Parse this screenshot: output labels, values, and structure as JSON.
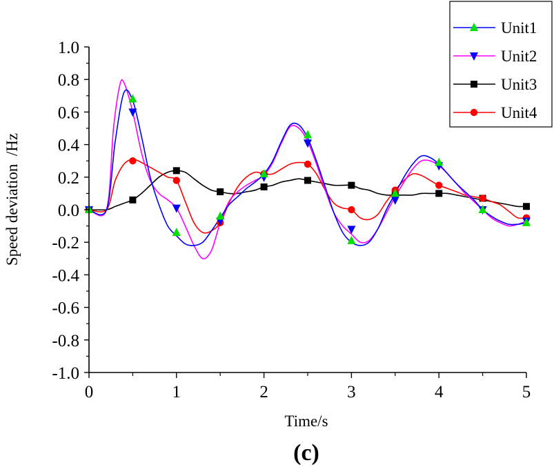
{
  "chart_data": {
    "type": "line",
    "title": "",
    "caption": "(c)",
    "xlabel": "Time/s",
    "ylabel": "Speed deviation  /Hz",
    "xlim": [
      0,
      5
    ],
    "ylim": [
      -1.0,
      1.0
    ],
    "xticks": [
      0,
      1,
      2,
      3,
      4,
      5
    ],
    "xtick_labels": [
      "0",
      "1",
      "2",
      "3",
      "4",
      "5"
    ],
    "yticks": [
      -1.0,
      -0.8,
      -0.6,
      -0.4,
      -0.2,
      0.0,
      0.2,
      0.4,
      0.6,
      0.8,
      1.0
    ],
    "ytick_labels": [
      "-1.0",
      "-0.8",
      "-0.6",
      "-0.4",
      "-0.2",
      "0.0",
      "0.2",
      "0.4",
      "0.6",
      "0.8",
      "1.0"
    ],
    "grid": false,
    "legend_position": "top-right",
    "series": [
      {
        "name": "Unit1",
        "color": "#0000ff",
        "marker": "triangle-up",
        "marker_color": "#00e000",
        "curve": [
          [
            0,
            0
          ],
          [
            0.2,
            0
          ],
          [
            0.3,
            0.42
          ],
          [
            0.4,
            0.72
          ],
          [
            0.5,
            0.67
          ],
          [
            0.6,
            0.45
          ],
          [
            0.7,
            0.2
          ],
          [
            0.8,
            0.03
          ],
          [
            0.9,
            -0.1
          ],
          [
            1.0,
            -0.16
          ],
          [
            1.1,
            -0.21
          ],
          [
            1.2,
            -0.22
          ],
          [
            1.3,
            -0.2
          ],
          [
            1.4,
            -0.13
          ],
          [
            1.5,
            -0.05
          ],
          [
            1.6,
            0.03
          ],
          [
            1.7,
            0.08
          ],
          [
            1.8,
            0.13
          ],
          [
            1.9,
            0.17
          ],
          [
            2.0,
            0.22
          ],
          [
            2.1,
            0.3
          ],
          [
            2.2,
            0.42
          ],
          [
            2.3,
            0.52
          ],
          [
            2.4,
            0.52
          ],
          [
            2.5,
            0.44
          ],
          [
            2.6,
            0.3
          ],
          [
            2.7,
            0.14
          ],
          [
            2.8,
            -0.02
          ],
          [
            2.9,
            -0.14
          ],
          [
            3.0,
            -0.2
          ],
          [
            3.1,
            -0.22
          ],
          [
            3.2,
            -0.2
          ],
          [
            3.3,
            -0.12
          ],
          [
            3.4,
            0.0
          ],
          [
            3.5,
            0.1
          ],
          [
            3.6,
            0.2
          ],
          [
            3.7,
            0.28
          ],
          [
            3.8,
            0.33
          ],
          [
            3.9,
            0.32
          ],
          [
            4.0,
            0.28
          ],
          [
            4.1,
            0.22
          ],
          [
            4.2,
            0.16
          ],
          [
            4.3,
            0.11
          ],
          [
            4.4,
            0.06
          ],
          [
            4.5,
            0.0
          ],
          [
            4.6,
            -0.04
          ],
          [
            4.7,
            -0.07
          ],
          [
            4.8,
            -0.09
          ],
          [
            4.9,
            -0.09
          ],
          [
            5.0,
            -0.08
          ]
        ],
        "markers": [
          [
            0,
            0
          ],
          [
            0.5,
            0.68
          ],
          [
            1.0,
            -0.14
          ],
          [
            1.5,
            -0.04
          ],
          [
            2.0,
            0.22
          ],
          [
            2.5,
            0.46
          ],
          [
            3.0,
            -0.19
          ],
          [
            3.5,
            0.1
          ],
          [
            4.0,
            0.29
          ],
          [
            4.5,
            0.0
          ],
          [
            5.0,
            -0.08
          ]
        ]
      },
      {
        "name": "Unit2",
        "color": "#ff00ff",
        "marker": "triangle-down",
        "marker_color": "#0000ff",
        "curve": [
          [
            0,
            0
          ],
          [
            0.2,
            0
          ],
          [
            0.28,
            0.5
          ],
          [
            0.35,
            0.76
          ],
          [
            0.4,
            0.78
          ],
          [
            0.5,
            0.6
          ],
          [
            0.6,
            0.35
          ],
          [
            0.7,
            0.18
          ],
          [
            0.8,
            0.1
          ],
          [
            0.9,
            0.06
          ],
          [
            1.0,
            0.01
          ],
          [
            1.1,
            -0.1
          ],
          [
            1.2,
            -0.22
          ],
          [
            1.3,
            -0.3
          ],
          [
            1.4,
            -0.25
          ],
          [
            1.5,
            -0.08
          ],
          [
            1.6,
            0.05
          ],
          [
            1.7,
            0.11
          ],
          [
            1.8,
            0.15
          ],
          [
            1.9,
            0.18
          ],
          [
            2.0,
            0.21
          ],
          [
            2.1,
            0.29
          ],
          [
            2.2,
            0.41
          ],
          [
            2.3,
            0.51
          ],
          [
            2.4,
            0.5
          ],
          [
            2.5,
            0.42
          ],
          [
            2.6,
            0.28
          ],
          [
            2.7,
            0.12
          ],
          [
            2.8,
            -0.02
          ],
          [
            2.9,
            -0.1
          ],
          [
            3.0,
            -0.15
          ],
          [
            3.1,
            -0.2
          ],
          [
            3.2,
            -0.19
          ],
          [
            3.3,
            -0.12
          ],
          [
            3.4,
            -0.02
          ],
          [
            3.5,
            0.08
          ],
          [
            3.6,
            0.17
          ],
          [
            3.7,
            0.25
          ],
          [
            3.8,
            0.3
          ],
          [
            3.9,
            0.3
          ],
          [
            4.0,
            0.27
          ],
          [
            4.1,
            0.22
          ],
          [
            4.2,
            0.16
          ],
          [
            4.3,
            0.1
          ],
          [
            4.4,
            0.05
          ],
          [
            4.5,
            0.0
          ],
          [
            4.6,
            -0.05
          ],
          [
            4.7,
            -0.08
          ],
          [
            4.8,
            -0.1
          ],
          [
            4.9,
            -0.09
          ],
          [
            5.0,
            -0.07
          ]
        ],
        "markers": [
          [
            0,
            0
          ],
          [
            0.5,
            0.6
          ],
          [
            1.0,
            0.01
          ],
          [
            1.5,
            -0.07
          ],
          [
            2.0,
            0.2
          ],
          [
            2.5,
            0.41
          ],
          [
            3.0,
            -0.12
          ],
          [
            3.5,
            0.06
          ],
          [
            4.0,
            0.27
          ],
          [
            4.5,
            0.0
          ],
          [
            5.0,
            -0.07
          ]
        ]
      },
      {
        "name": "Unit3",
        "color": "#000000",
        "marker": "square",
        "marker_color": "#000000",
        "curve": [
          [
            0,
            0
          ],
          [
            0.2,
            0
          ],
          [
            0.3,
            0.02
          ],
          [
            0.4,
            0.04
          ],
          [
            0.5,
            0.06
          ],
          [
            0.6,
            0.1
          ],
          [
            0.7,
            0.15
          ],
          [
            0.8,
            0.2
          ],
          [
            0.9,
            0.23
          ],
          [
            1.0,
            0.24
          ],
          [
            1.1,
            0.23
          ],
          [
            1.2,
            0.19
          ],
          [
            1.3,
            0.15
          ],
          [
            1.4,
            0.12
          ],
          [
            1.5,
            0.11
          ],
          [
            1.6,
            0.1
          ],
          [
            1.7,
            0.1
          ],
          [
            1.8,
            0.11
          ],
          [
            1.9,
            0.12
          ],
          [
            2.0,
            0.14
          ],
          [
            2.1,
            0.15
          ],
          [
            2.2,
            0.17
          ],
          [
            2.3,
            0.18
          ],
          [
            2.4,
            0.19
          ],
          [
            2.5,
            0.18
          ],
          [
            2.6,
            0.17
          ],
          [
            2.7,
            0.16
          ],
          [
            2.8,
            0.15
          ],
          [
            2.9,
            0.15
          ],
          [
            3.0,
            0.15
          ],
          [
            3.1,
            0.13
          ],
          [
            3.2,
            0.12
          ],
          [
            3.3,
            0.1
          ],
          [
            3.4,
            0.09
          ],
          [
            3.5,
            0.09
          ],
          [
            3.6,
            0.09
          ],
          [
            3.7,
            0.09
          ],
          [
            3.8,
            0.1
          ],
          [
            3.9,
            0.1
          ],
          [
            4.0,
            0.1
          ],
          [
            4.1,
            0.1
          ],
          [
            4.2,
            0.09
          ],
          [
            4.3,
            0.08
          ],
          [
            4.4,
            0.07
          ],
          [
            4.5,
            0.06
          ],
          [
            4.6,
            0.05
          ],
          [
            4.7,
            0.04
          ],
          [
            4.8,
            0.03
          ],
          [
            4.9,
            0.02
          ],
          [
            5.0,
            0.02
          ]
        ],
        "markers": [
          [
            0,
            0
          ],
          [
            0.5,
            0.06
          ],
          [
            1.0,
            0.24
          ],
          [
            1.5,
            0.11
          ],
          [
            2.0,
            0.14
          ],
          [
            2.5,
            0.18
          ],
          [
            3.0,
            0.15
          ],
          [
            3.5,
            0.1
          ],
          [
            4.0,
            0.1
          ],
          [
            4.5,
            0.07
          ],
          [
            5.0,
            0.02
          ]
        ]
      },
      {
        "name": "Unit4",
        "color": "#ff0000",
        "marker": "circle",
        "marker_color": "#ff0000",
        "curve": [
          [
            0,
            0
          ],
          [
            0.2,
            0
          ],
          [
            0.3,
            0.18
          ],
          [
            0.4,
            0.28
          ],
          [
            0.5,
            0.31
          ],
          [
            0.6,
            0.29
          ],
          [
            0.7,
            0.26
          ],
          [
            0.8,
            0.23
          ],
          [
            0.9,
            0.2
          ],
          [
            1.0,
            0.18
          ],
          [
            1.1,
            0.05
          ],
          [
            1.2,
            -0.08
          ],
          [
            1.3,
            -0.14
          ],
          [
            1.4,
            -0.13
          ],
          [
            1.5,
            -0.08
          ],
          [
            1.6,
            0.04
          ],
          [
            1.7,
            0.14
          ],
          [
            1.8,
            0.2
          ],
          [
            1.9,
            0.23
          ],
          [
            2.0,
            0.22
          ],
          [
            2.1,
            0.22
          ],
          [
            2.2,
            0.25
          ],
          [
            2.3,
            0.28
          ],
          [
            2.4,
            0.29
          ],
          [
            2.5,
            0.28
          ],
          [
            2.6,
            0.22
          ],
          [
            2.7,
            0.12
          ],
          [
            2.8,
            0.04
          ],
          [
            2.9,
            0.01
          ],
          [
            3.0,
            0.0
          ],
          [
            3.1,
            -0.05
          ],
          [
            3.2,
            -0.06
          ],
          [
            3.3,
            -0.03
          ],
          [
            3.4,
            0.05
          ],
          [
            3.5,
            0.12
          ],
          [
            3.6,
            0.18
          ],
          [
            3.7,
            0.22
          ],
          [
            3.8,
            0.21
          ],
          [
            3.9,
            0.18
          ],
          [
            4.0,
            0.15
          ],
          [
            4.1,
            0.13
          ],
          [
            4.2,
            0.11
          ],
          [
            4.3,
            0.09
          ],
          [
            4.4,
            0.08
          ],
          [
            4.5,
            0.07
          ],
          [
            4.6,
            0.05
          ],
          [
            4.7,
            0.03
          ],
          [
            4.8,
            -0.01
          ],
          [
            4.9,
            -0.05
          ],
          [
            5.0,
            -0.05
          ]
        ],
        "markers": [
          [
            0,
            0
          ],
          [
            0.5,
            0.3
          ],
          [
            1.0,
            0.18
          ],
          [
            1.5,
            -0.08
          ],
          [
            2.0,
            0.22
          ],
          [
            2.5,
            0.28
          ],
          [
            3.0,
            0.0
          ],
          [
            3.5,
            0.12
          ],
          [
            4.0,
            0.15
          ],
          [
            4.5,
            0.07
          ],
          [
            5.0,
            -0.05
          ]
        ]
      }
    ]
  }
}
